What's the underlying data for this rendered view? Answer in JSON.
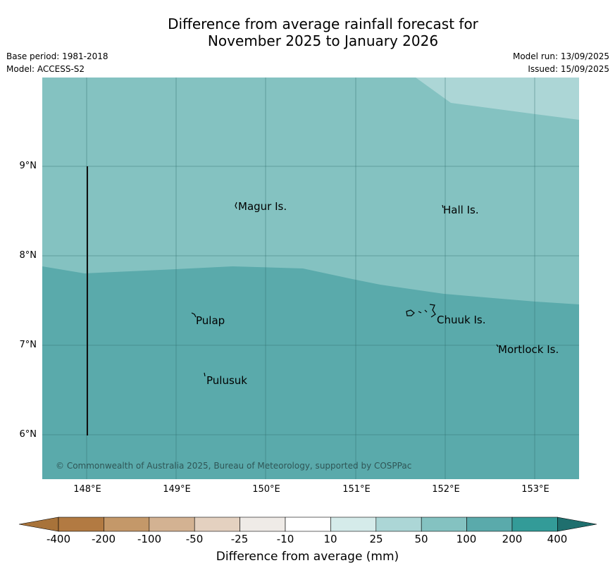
{
  "title_line1": "Difference from average rainfall forecast for",
  "title_line2": "November 2025 to January 2026",
  "base_period": "Base period: 1981-2018",
  "model": "Model: ACCESS-S2",
  "model_run": "Model run: 13/09/2025",
  "issued": "Issued: 15/09/2025",
  "map": {
    "y_labels": [
      "9°N",
      "8°N",
      "7°N",
      "6°N"
    ],
    "x_labels": [
      "148°E",
      "149°E",
      "150°E",
      "151°E",
      "152°E",
      "153°E"
    ],
    "places": [
      "Magur Is.",
      "Hall Is.",
      "Pulap",
      "Chuuk Is.",
      "Mortlock Is.",
      "Pulusuk"
    ],
    "copyright": "© Commonwealth of Australia 2025, Bureau of Meteorology, supported by COSPPac",
    "zone_colors": {
      "25_to_50": "#acd6d6",
      "50_to_100": "#84c2c1",
      "100_to_200": "#5aaaab"
    }
  },
  "colorbar": {
    "title": "Difference from average (mm)",
    "ticks": [
      "-400",
      "-200",
      "-100",
      "-50",
      "-25",
      "-10",
      "10",
      "25",
      "50",
      "100",
      "200",
      "400"
    ],
    "colors": [
      "#a8733a",
      "#b27a42",
      "#c49869",
      "#d3b292",
      "#e4d1c0",
      "#efebe7",
      "#ffffff",
      "#d5ebea",
      "#acd6d6",
      "#84c2c1",
      "#5aaaab",
      "#339b98",
      "#1f6f6e"
    ]
  }
}
